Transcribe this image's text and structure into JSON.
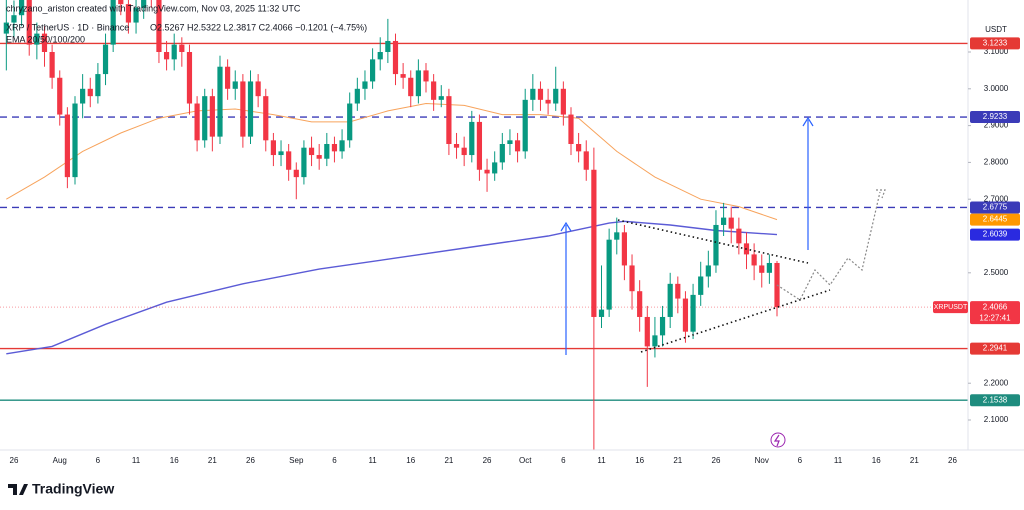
{
  "header": {
    "author_line": "chryzano_ariston created with TradingView.com, Nov 03, 2025 11:32 UTC",
    "symbol": "XRP / TetherUS · 1D · Binance",
    "ohlc_text": "O2.5267 H2.5322 L2.3817 C2.4066 −0.1201 (−4.75%)",
    "indicator": "EMA 20/50/100/200",
    "currency": "USDT",
    "ticker": "XRPUSDT",
    "countdown": "12:27:41",
    "brand": "TradingView"
  },
  "chart_data": {
    "type": "candlestick",
    "up_color": "#089981",
    "down_color": "#f23645",
    "grid": false,
    "x": [
      -1,
      0,
      1,
      2,
      3,
      4,
      5,
      6,
      7,
      8,
      9,
      10,
      11,
      12,
      13,
      14,
      15,
      16,
      17,
      18,
      19,
      20,
      21,
      22,
      23,
      24,
      25,
      26,
      27,
      28,
      29,
      30,
      31,
      32,
      33,
      34,
      35,
      36,
      37,
      38,
      39,
      40,
      41,
      42,
      43,
      44,
      45,
      46,
      47,
      48,
      49,
      50,
      51,
      52,
      53,
      54,
      55,
      56,
      57,
      58,
      59,
      60,
      61,
      62,
      63,
      64,
      65,
      66,
      67,
      68,
      69,
      70,
      71,
      72,
      73,
      74,
      75,
      76,
      77,
      78,
      79,
      80,
      81,
      82,
      83,
      84,
      85,
      86,
      87,
      88,
      89,
      90,
      91,
      92,
      93,
      94,
      95,
      96,
      97,
      98,
      99,
      100
    ],
    "open": [
      3.15,
      3.18,
      3.2,
      3.25,
      3.12,
      3.15,
      3.1,
      3.03,
      2.93,
      2.76,
      2.96,
      3.0,
      2.98,
      3.04,
      3.12,
      3.32,
      3.23,
      3.18,
      3.22,
      3.28,
      3.26,
      3.1,
      3.08,
      3.12,
      3.1,
      2.96,
      2.86,
      2.98,
      2.87,
      3.06,
      3.0,
      3.02,
      2.87,
      3.02,
      2.98,
      2.86,
      2.82,
      2.83,
      2.78,
      2.76,
      2.84,
      2.82,
      2.81,
      2.85,
      2.83,
      2.86,
      2.96,
      3.0,
      3.02,
      3.08,
      3.1,
      3.13,
      3.04,
      3.03,
      2.98,
      3.05,
      3.02,
      2.97,
      2.98,
      2.85,
      2.84,
      2.82,
      2.91,
      2.78,
      2.77,
      2.8,
      2.85,
      2.86,
      2.83,
      2.97,
      3.0,
      2.97,
      2.96,
      3.0,
      2.93,
      2.85,
      2.83,
      2.78,
      2.38,
      2.4,
      2.59,
      2.61,
      2.52,
      2.45,
      2.38,
      2.3,
      2.33,
      2.38,
      2.47,
      2.43,
      2.34,
      2.44,
      2.49,
      2.52,
      2.63,
      2.65,
      2.62,
      2.58,
      2.55,
      2.52,
      2.5,
      2.5267
    ],
    "high": [
      3.25,
      3.24,
      3.28,
      3.27,
      3.18,
      3.17,
      3.12,
      3.05,
      2.95,
      2.98,
      3.04,
      3.03,
      3.07,
      3.15,
      3.35,
      3.34,
      3.26,
      3.25,
      3.31,
      3.32,
      3.28,
      3.13,
      3.15,
      3.14,
      3.12,
      2.98,
      3.0,
      3.0,
      3.09,
      3.08,
      3.05,
      3.04,
      3.05,
      3.04,
      3.0,
      2.88,
      2.86,
      2.85,
      2.8,
      2.86,
      2.87,
      2.85,
      2.88,
      2.87,
      2.89,
      2.99,
      3.03,
      3.05,
      3.11,
      3.14,
      3.19,
      3.15,
      3.07,
      3.05,
      3.08,
      3.07,
      3.04,
      3.01,
      3.0,
      2.88,
      2.87,
      2.94,
      2.93,
      2.81,
      2.83,
      2.88,
      2.89,
      2.88,
      3.0,
      3.04,
      3.02,
      3.0,
      3.06,
      3.02,
      2.95,
      2.88,
      2.86,
      2.84,
      2.52,
      2.62,
      2.65,
      2.63,
      2.55,
      2.48,
      2.41,
      2.38,
      2.41,
      2.5,
      2.49,
      2.45,
      2.47,
      2.53,
      2.56,
      2.67,
      2.69,
      2.68,
      2.65,
      2.61,
      2.58,
      2.55,
      2.55,
      2.5322
    ],
    "low": [
      3.05,
      3.14,
      3.17,
      3.09,
      3.08,
      3.06,
      3.0,
      2.9,
      2.73,
      2.74,
      2.92,
      2.95,
      2.96,
      3.01,
      3.1,
      3.2,
      3.15,
      3.15,
      3.19,
      3.22,
      3.07,
      3.05,
      3.05,
      3.06,
      2.93,
      2.83,
      2.84,
      2.83,
      2.85,
      2.97,
      2.97,
      2.84,
      2.85,
      2.95,
      2.83,
      2.79,
      2.79,
      2.75,
      2.7,
      2.74,
      2.79,
      2.78,
      2.79,
      2.8,
      2.81,
      2.84,
      2.94,
      2.97,
      3.0,
      3.05,
      3.07,
      3.01,
      3.0,
      2.95,
      2.96,
      2.99,
      2.94,
      2.95,
      2.82,
      2.81,
      2.79,
      2.8,
      2.75,
      2.72,
      2.75,
      2.78,
      2.82,
      2.8,
      2.81,
      2.94,
      2.94,
      2.93,
      2.94,
      2.9,
      2.82,
      2.8,
      2.75,
      2.02,
      2.35,
      2.38,
      2.55,
      2.48,
      2.4,
      2.34,
      2.19,
      2.27,
      2.3,
      2.35,
      2.39,
      2.31,
      2.32,
      2.41,
      2.46,
      2.5,
      2.6,
      2.58,
      2.55,
      2.51,
      2.48,
      2.46,
      2.47,
      2.3817
    ],
    "close": [
      3.18,
      3.2,
      3.25,
      3.12,
      3.15,
      3.1,
      3.03,
      2.93,
      2.76,
      2.96,
      3.0,
      2.98,
      3.04,
      3.12,
      3.32,
      3.23,
      3.18,
      3.22,
      3.28,
      3.26,
      3.1,
      3.08,
      3.12,
      3.1,
      2.96,
      2.86,
      2.98,
      2.87,
      3.06,
      3.0,
      3.02,
      2.87,
      3.02,
      2.98,
      2.86,
      2.82,
      2.83,
      2.78,
      2.76,
      2.84,
      2.82,
      2.81,
      2.85,
      2.83,
      2.86,
      2.96,
      3.0,
      3.02,
      3.08,
      3.1,
      3.13,
      3.04,
      3.03,
      2.98,
      3.05,
      3.02,
      2.97,
      2.98,
      2.85,
      2.84,
      2.82,
      2.91,
      2.78,
      2.77,
      2.8,
      2.85,
      2.86,
      2.83,
      2.97,
      3.0,
      2.97,
      2.96,
      3.0,
      2.93,
      2.85,
      2.83,
      2.78,
      2.38,
      2.4,
      2.59,
      2.61,
      2.52,
      2.45,
      2.38,
      2.3,
      2.33,
      2.38,
      2.47,
      2.43,
      2.34,
      2.44,
      2.49,
      2.52,
      2.63,
      2.65,
      2.62,
      2.58,
      2.55,
      2.52,
      2.5,
      2.5267,
      2.4066
    ],
    "ema_lines": [
      {
        "color": "#f7a35c",
        "x": [
          -1,
          4,
          9,
          14,
          19,
          24,
          29,
          34,
          39,
          44,
          49,
          54,
          59,
          64,
          69,
          74,
          79,
          84,
          90,
          95,
          100
        ],
        "values": [
          2.7,
          2.76,
          2.83,
          2.88,
          2.92,
          2.94,
          2.945,
          2.93,
          2.91,
          2.91,
          2.94,
          2.96,
          2.955,
          2.93,
          2.93,
          2.92,
          2.83,
          2.76,
          2.7,
          2.68,
          2.6445
        ],
        "label_color": "#ff9800"
      },
      {
        "color": "#5b5bd6",
        "x": [
          -1,
          5,
          12,
          20,
          30,
          40,
          50,
          60,
          70,
          78,
          80,
          86,
          92,
          100
        ],
        "values": [
          2.28,
          2.3,
          2.36,
          2.42,
          2.47,
          2.51,
          2.54,
          2.57,
          2.6,
          2.635,
          2.64,
          2.63,
          2.615,
          2.6039
        ],
        "label_color": "#2a2ae0"
      }
    ],
    "levels": [
      {
        "value": 3.1233,
        "color": "#e53935",
        "style": "solid"
      },
      {
        "value": 2.9233,
        "color": "#3b3bb8",
        "style": "dashed"
      },
      {
        "value": 2.6775,
        "color": "#3b3bb8",
        "style": "dashed"
      },
      {
        "value": 2.2941,
        "color": "#e53935",
        "style": "solid"
      },
      {
        "value": 2.1538,
        "color": "#1e8c7e",
        "style": "solid"
      }
    ],
    "ylim": [
      2.0185,
      3.2413
    ],
    "xlim": [
      -1.83,
      125.03
    ],
    "yticks": [
      {
        "value": 2.1,
        "label": "2.1000"
      },
      {
        "value": 2.2,
        "label": "2.2000"
      },
      {
        "value": 2.5,
        "label": "2.5000"
      },
      {
        "value": 2.7,
        "label": "2.7000"
      },
      {
        "value": 2.8,
        "label": "2.8000"
      },
      {
        "value": 2.9,
        "label": "2.9000"
      },
      {
        "value": 3.0,
        "label": "3.0000"
      },
      {
        "value": 3.1,
        "label": "3.1000"
      }
    ],
    "xticks": [
      {
        "value": 0,
        "label": "26"
      },
      {
        "value": 6,
        "label": "Aug"
      },
      {
        "value": 11,
        "label": "6"
      },
      {
        "value": 16,
        "label": "11"
      },
      {
        "value": 21,
        "label": "16"
      },
      {
        "value": 26,
        "label": "21"
      },
      {
        "value": 31,
        "label": "26"
      },
      {
        "value": 37,
        "label": "Sep"
      },
      {
        "value": 42,
        "label": "6"
      },
      {
        "value": 47,
        "label": "11"
      },
      {
        "value": 52,
        "label": "16"
      },
      {
        "value": 57,
        "label": "21"
      },
      {
        "value": 62,
        "label": "26"
      },
      {
        "value": 67,
        "label": "Oct"
      },
      {
        "value": 72,
        "label": "6"
      },
      {
        "value": 77,
        "label": "11"
      },
      {
        "value": 82,
        "label": "16"
      },
      {
        "value": 87,
        "label": "21"
      },
      {
        "value": 92,
        "label": "26"
      },
      {
        "value": 98,
        "label": "Nov"
      },
      {
        "value": 103,
        "label": "6"
      },
      {
        "value": 108,
        "label": "11"
      },
      {
        "value": 113,
        "label": "16"
      },
      {
        "value": 118,
        "label": "21"
      },
      {
        "value": 123,
        "label": "26"
      }
    ]
  }
}
